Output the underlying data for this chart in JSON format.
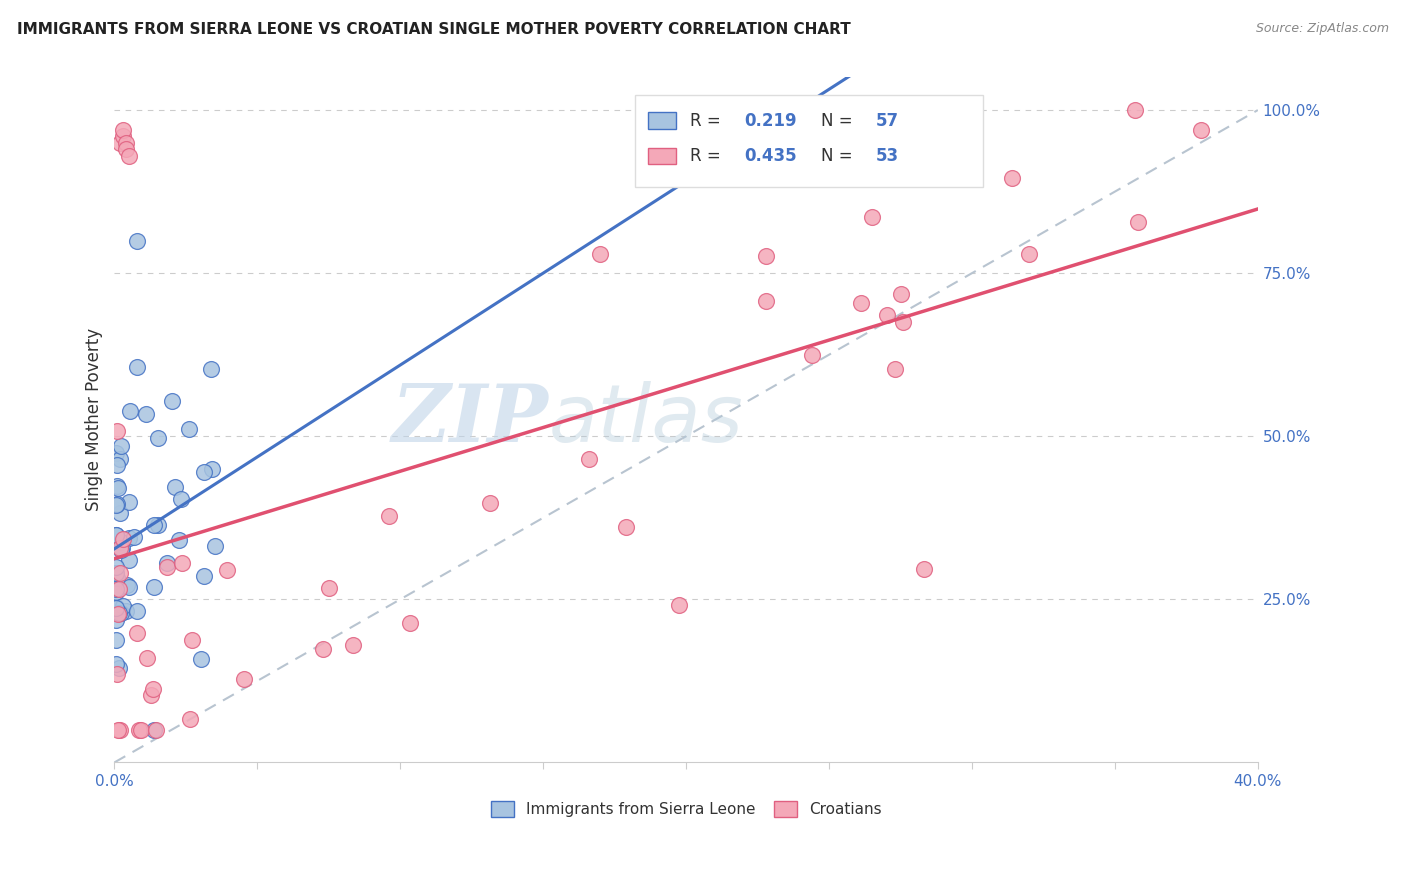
{
  "title": "IMMIGRANTS FROM SIERRA LEONE VS CROATIAN SINGLE MOTHER POVERTY CORRELATION CHART",
  "source": "Source: ZipAtlas.com",
  "legend_label1": "Immigrants from Sierra Leone",
  "legend_label2": "Croatians",
  "ylabel": "Single Mother Poverty",
  "xlim": [
    0.0,
    0.4
  ],
  "ylim": [
    0.0,
    1.05
  ],
  "blue_fill": "#a8c4e0",
  "pink_fill": "#f4a8b8",
  "blue_edge": "#4472c4",
  "pink_edge": "#e06080",
  "line_blue": "#4472c4",
  "line_pink": "#e05070",
  "line_gray": "#b8c4d0",
  "axis_color": "#4472c4",
  "grid_color": "#cccccc",
  "title_color": "#222222",
  "source_color": "#888888",
  "ylabel_color": "#333333",
  "watermark_zip_color": "#c0d4e8",
  "watermark_atlas_color": "#b0c8d8",
  "R1": "0.219",
  "N1": "57",
  "R2": "0.435",
  "N2": "53"
}
